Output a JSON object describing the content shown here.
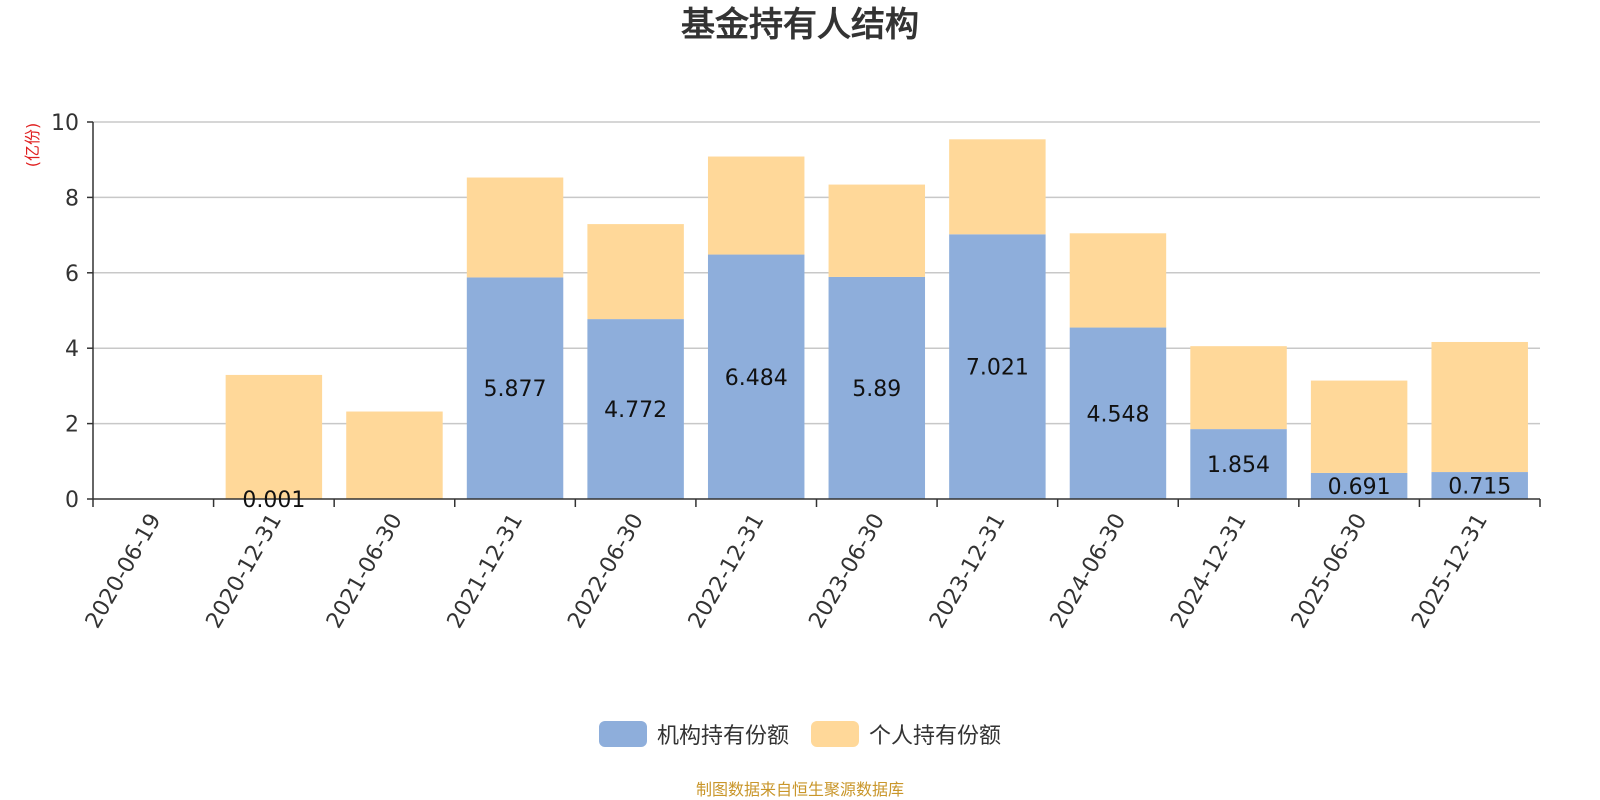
{
  "chart_data": {
    "type": "bar",
    "stacked": true,
    "title": "基金持有人结构",
    "ylabel": "(亿份)",
    "ylim": [
      0,
      10
    ],
    "yticks": [
      0,
      2,
      4,
      6,
      8,
      10
    ],
    "grid": true,
    "legend_position": "bottom",
    "categories": [
      "2020-06-19",
      "2020-12-31",
      "2021-06-30",
      "2021-12-31",
      "2022-06-30",
      "2022-12-31",
      "2023-06-30",
      "2023-12-31",
      "2024-06-30",
      "2024-12-31",
      "2025-06-30",
      "2025-12-31"
    ],
    "series": [
      {
        "name": "机构持有份额",
        "color": "#8eaedb",
        "values": [
          0,
          0.001,
          0,
          5.877,
          4.772,
          6.484,
          5.89,
          7.021,
          4.548,
          1.854,
          0.691,
          0.715
        ],
        "labels": [
          "",
          "0.001",
          "",
          "5.877",
          "4.772",
          "6.484",
          "5.89",
          "7.021",
          "4.548",
          "1.854",
          "0.691",
          "0.715"
        ]
      },
      {
        "name": "个人持有份额",
        "color": "#ffd899",
        "values": [
          0,
          3.29,
          2.32,
          2.65,
          2.52,
          2.6,
          2.45,
          2.52,
          2.5,
          2.2,
          2.45,
          3.45
        ]
      }
    ]
  },
  "source_note": "制图数据来自恒生聚源数据库"
}
